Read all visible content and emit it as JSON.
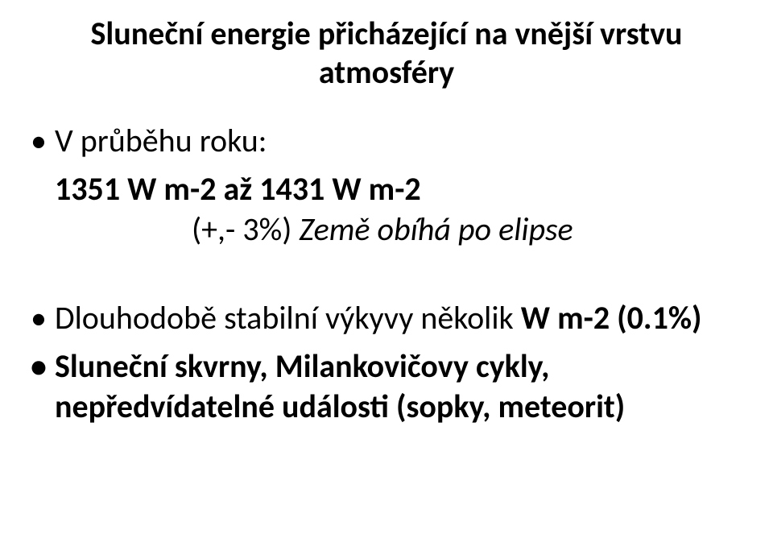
{
  "title": {
    "line1": "Sluneční energie přicházející na vnější vrstvu",
    "line2": "atmosféry"
  },
  "bullets": {
    "b1": {
      "lead": "V průběhu roku:",
      "range": "1351 W m-2   až  1431 W m-2",
      "pct_prefix": "(+,- 3%)",
      "pct_note": " Země obíhá po elipse"
    },
    "b2": {
      "text_a": "Dlouhodobě stabilní výkyvy několik ",
      "text_b": "W m-2 (0.1%)"
    },
    "b3": {
      "text": "Sluneční skvrny, Milankovičovy cykly, nepředvídatelné události (sopky, meteorit)"
    }
  }
}
